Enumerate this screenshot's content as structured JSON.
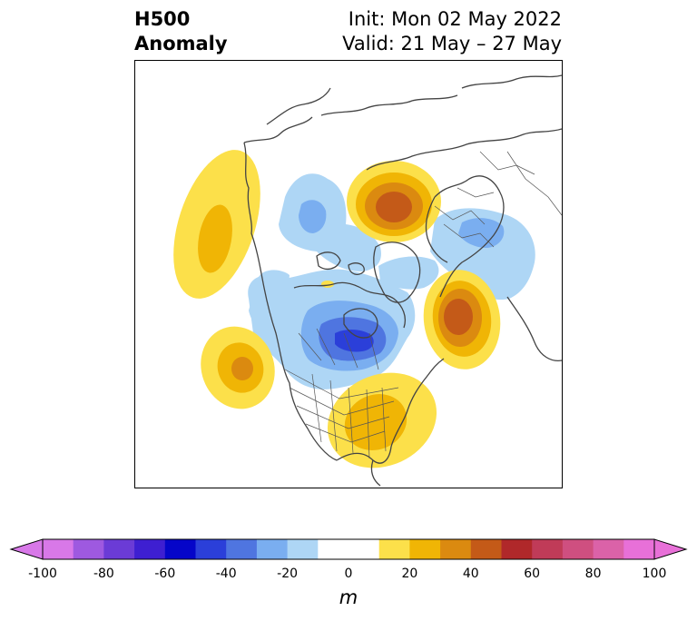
{
  "header": {
    "title_line1": "H500",
    "title_line2": "Anomaly",
    "init_text": "Init: Mon 02 May 2022",
    "valid_text": "Valid: 21 May – 27 May"
  },
  "map": {
    "projection": "polar-stereographic (North America / North Atlantic)",
    "anomaly_centers": [
      {
        "region": "Gulf of Alaska / NE Pacific",
        "sign": "positive",
        "peak_m": 30
      },
      {
        "region": "Eastern North Pacific (off California)",
        "sign": "positive",
        "peak_m": 40
      },
      {
        "region": "Northern Europe / Scandinavia",
        "sign": "positive",
        "peak_m": 50
      },
      {
        "region": "Central North Atlantic",
        "sign": "positive",
        "peak_m": 50
      },
      {
        "region": "Eastern United States",
        "sign": "positive",
        "peak_m": 30
      },
      {
        "region": "Hudson Bay / Canada",
        "sign": "negative",
        "peak_m": -50
      },
      {
        "region": "Arctic / Siberia",
        "sign": "negative",
        "peak_m": -20
      },
      {
        "region": "Eurasia / Western Russia",
        "sign": "negative",
        "peak_m": -20
      }
    ]
  },
  "colorbar": {
    "unit_label": "m",
    "ticks": [
      "-100",
      "-80",
      "-60",
      "-40",
      "-20",
      "0",
      "20",
      "40",
      "60",
      "80",
      "100"
    ],
    "colors": [
      "#d878e8",
      "#9e59e0",
      "#6b3bd6",
      "#3e1fd1",
      "#0505c9",
      "#2b3fd9",
      "#4f75e0",
      "#7aaef0",
      "#aed6f5",
      "#ffffff",
      "#ffffff",
      "#fce04a",
      "#f0b505",
      "#db8a10",
      "#c45a18",
      "#b0282a",
      "#c03b58",
      "#cf4f80",
      "#db62a8",
      "#e870d8"
    ]
  }
}
